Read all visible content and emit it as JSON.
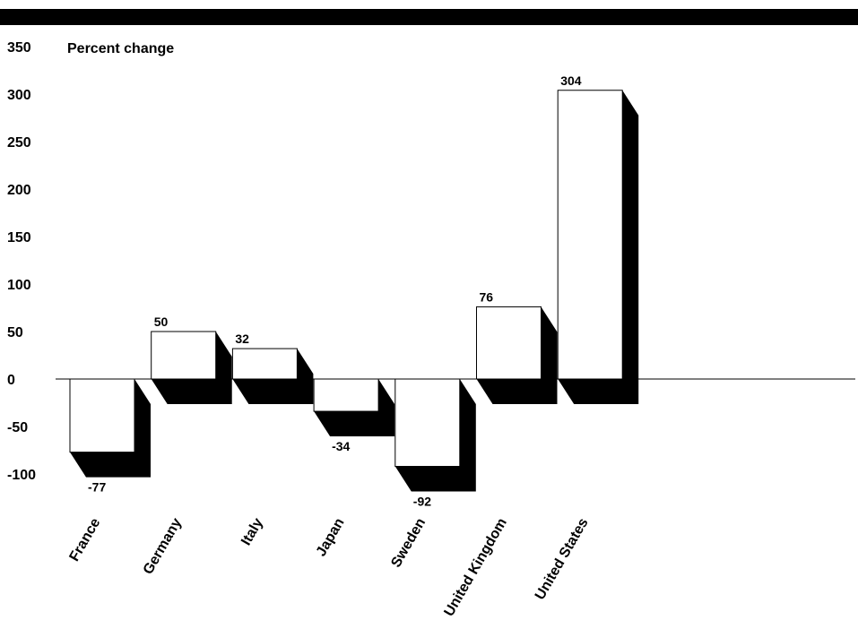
{
  "colors": {
    "bar_face": "#ffffff",
    "bar_edge": "#000000",
    "shadow": "#000000",
    "header_band": "#000000"
  },
  "chart_data": {
    "type": "bar",
    "style": "3d-shadow",
    "ylabel": "Percent change",
    "ylim": [
      -100,
      350
    ],
    "yticks": [
      350,
      300,
      250,
      200,
      150,
      100,
      50,
      0,
      -50,
      -100
    ],
    "categories": [
      "France",
      "Germany",
      "Italy",
      "Japan",
      "Sweden",
      "United Kingdom",
      "United States"
    ],
    "values": [
      -77,
      50,
      32,
      -34,
      -92,
      76,
      304
    ],
    "value_labels": [
      "-77",
      "50",
      "32",
      "-34",
      "-92",
      "76",
      "304"
    ],
    "grid": false,
    "legend": "none"
  }
}
